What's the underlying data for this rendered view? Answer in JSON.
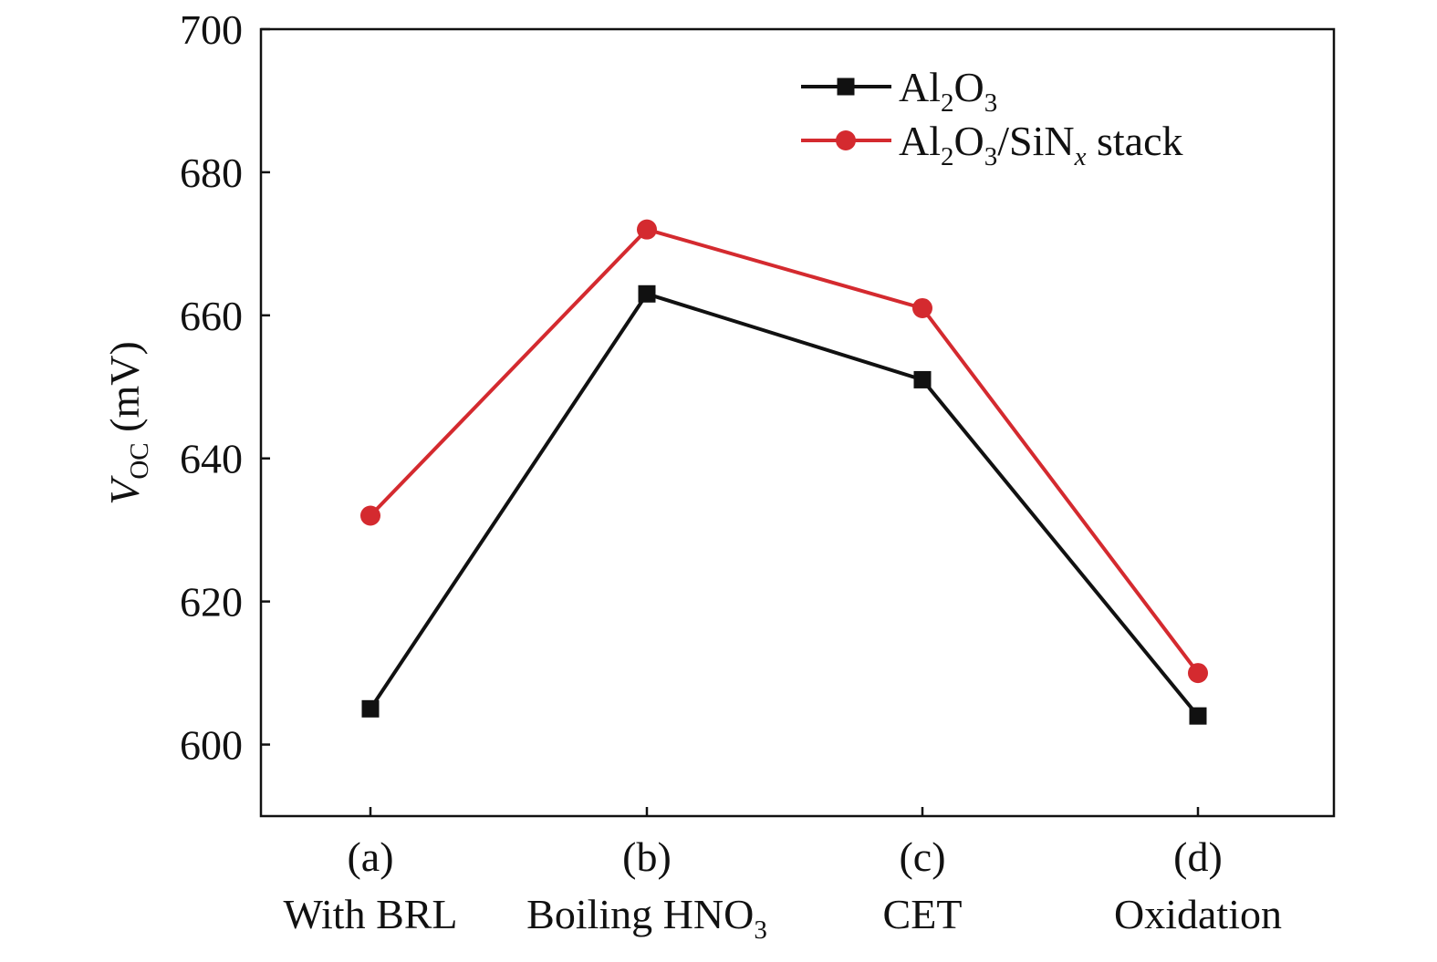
{
  "chart_data": {
    "type": "line",
    "categories": [
      {
        "letter": "(a)",
        "label": "With BRL",
        "sub": ""
      },
      {
        "letter": "(b)",
        "label": "Boiling HNO",
        "sub": "3"
      },
      {
        "letter": "(c)",
        "label": "CET",
        "sub": ""
      },
      {
        "letter": "(d)",
        "label": "Oxidation",
        "sub": ""
      }
    ],
    "ylabel": {
      "main": "V",
      "sub": "OC",
      "unit": " (mV)"
    },
    "ylim": [
      590,
      700
    ],
    "yticks": [
      600,
      620,
      640,
      660,
      680,
      700
    ],
    "grid": false,
    "legend_position": "top-right",
    "series": [
      {
        "name_parts": [
          {
            "t": "Al",
            "s": false
          },
          {
            "t": "2",
            "s": true
          },
          {
            "t": "O",
            "s": false
          },
          {
            "t": "3",
            "s": true
          }
        ],
        "values": [
          605,
          663,
          651,
          604
        ],
        "color": "#111111",
        "marker": "square"
      },
      {
        "name_parts": [
          {
            "t": "Al",
            "s": false
          },
          {
            "t": "2",
            "s": true
          },
          {
            "t": "O",
            "s": false
          },
          {
            "t": "3",
            "s": true
          },
          {
            "t": "/SiN",
            "s": false
          },
          {
            "t": "x",
            "s": true,
            "i": true
          },
          {
            "t": " stack",
            "s": false
          }
        ],
        "values": [
          632,
          672,
          661,
          610
        ],
        "color": "#d42a2f",
        "marker": "circle"
      }
    ]
  }
}
